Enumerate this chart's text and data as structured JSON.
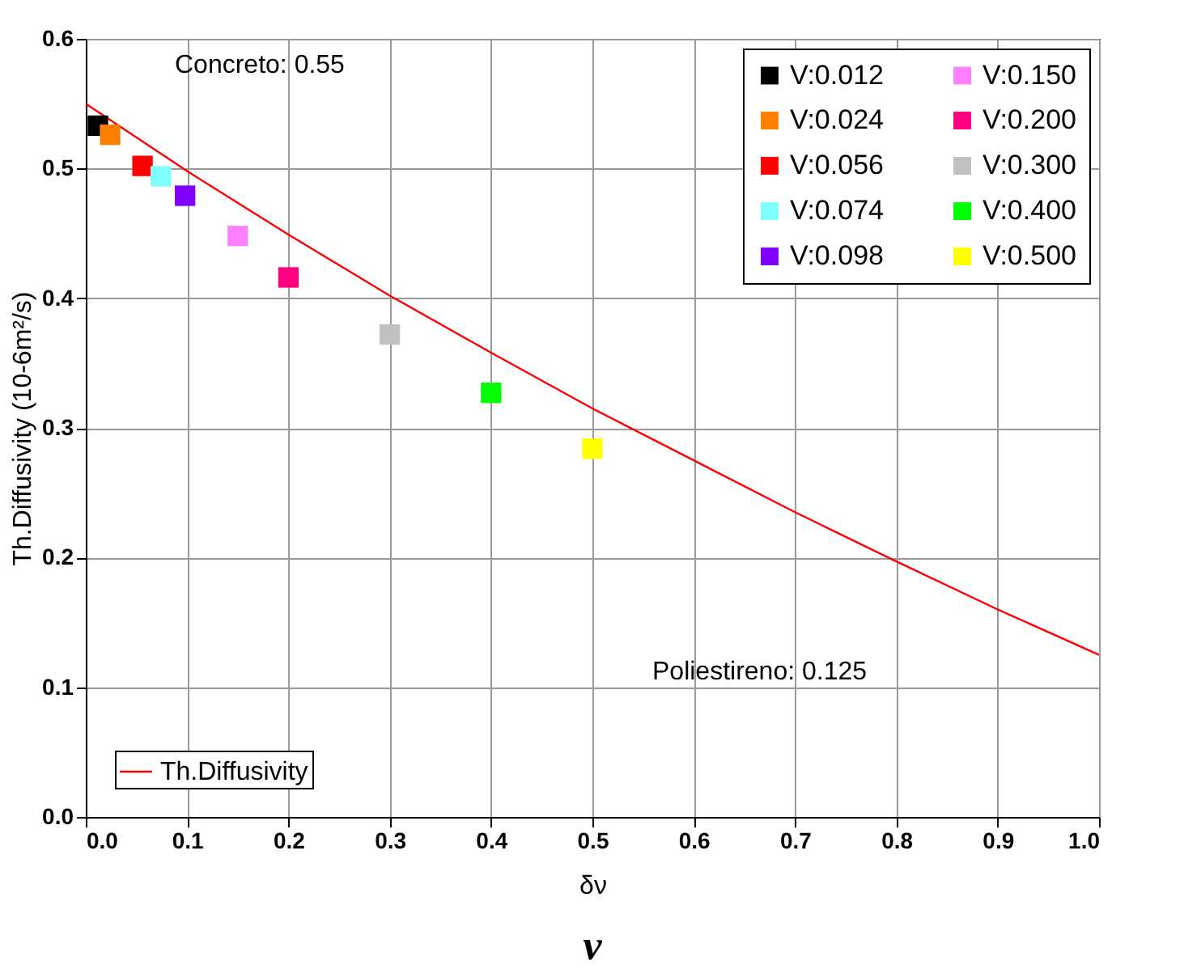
{
  "chart_data": {
    "type": "scatter",
    "xlabel": "δν",
    "ylabel": "Th.Diffusivity (10-6m²/s)",
    "xlim": [
      0,
      1.0
    ],
    "ylim": [
      0,
      0.6
    ],
    "xticks": [
      {
        "value": 0,
        "label": "0.0"
      },
      0.1,
      0.2,
      0.3,
      0.4,
      0.5,
      0.6,
      0.7,
      0.8,
      0.9,
      {
        "value": 1.0,
        "label": "1.0"
      }
    ],
    "yticks": [
      {
        "value": 0,
        "label": "0.0"
      },
      0.1,
      0.2,
      0.3,
      0.4,
      0.5,
      0.6
    ],
    "grid": true,
    "legend": "top right",
    "marker": "square",
    "series": [
      {
        "name": "V:0.012",
        "color": "#000000",
        "x": [
          0.012
        ],
        "values": [
          0.533
        ]
      },
      {
        "name": "V:0.024",
        "color": "#ff8000",
        "x": [
          0.024
        ],
        "values": [
          0.526
        ]
      },
      {
        "name": "V:0.056",
        "color": "#ff0000",
        "x": [
          0.056
        ],
        "values": [
          0.502
        ]
      },
      {
        "name": "V:0.074",
        "color": "#80ffff",
        "x": [
          0.074
        ],
        "values": [
          0.494
        ]
      },
      {
        "name": "V:0.098",
        "color": "#8000ff",
        "x": [
          0.098
        ],
        "values": [
          0.479
        ]
      },
      {
        "name": "V:0.150",
        "color": "#ff80ff",
        "x": [
          0.15
        ],
        "values": [
          0.448
        ]
      },
      {
        "name": "V:0.200",
        "color": "#ff0080",
        "x": [
          0.2
        ],
        "values": [
          0.416
        ]
      },
      {
        "name": "V:0.300",
        "color": "#c0c0c0",
        "x": [
          0.3
        ],
        "values": [
          0.372
        ]
      },
      {
        "name": "V:0.400",
        "color": "#00ff00",
        "x": [
          0.4
        ],
        "values": [
          0.327
        ]
      },
      {
        "name": "V:0.500",
        "color": "#ffff00",
        "x": [
          0.5
        ],
        "values": [
          0.284
        ]
      },
      {
        "name": "Th.Diffusivity",
        "type": "line",
        "color": "#ff0000",
        "marker": "none",
        "line_style": "solid",
        "x": [
          0,
          0.1,
          0.2,
          0.3,
          0.4,
          0.5,
          0.6,
          0.7,
          0.8,
          0.9,
          1.0
        ],
        "values": [
          0.55,
          0.498,
          0.449,
          0.402,
          0.358,
          0.315,
          0.275,
          0.235,
          0.197,
          0.16,
          0.125
        ]
      }
    ],
    "annotations": [
      "Concreto: 0.55",
      "Poliestireno: 0.125",
      "v"
    ]
  }
}
